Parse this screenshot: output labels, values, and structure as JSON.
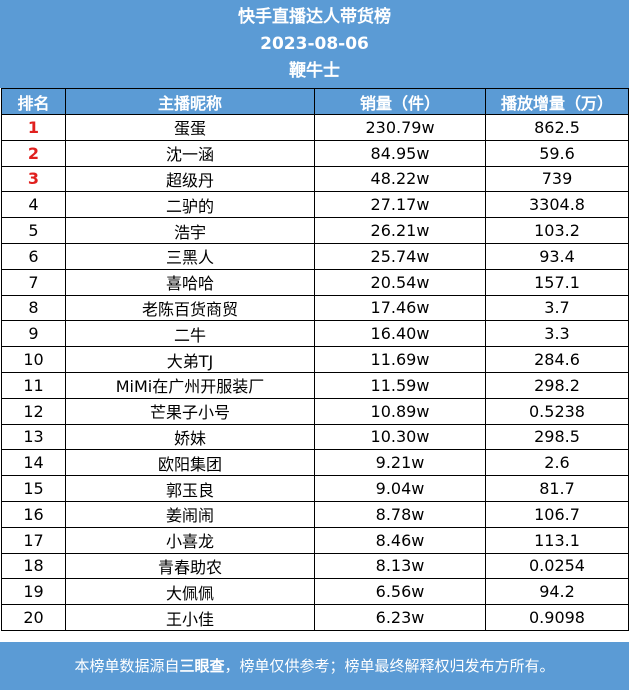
{
  "header": {
    "title": "快手直播达人带货榜",
    "date": "2023-08-06",
    "brand": "鞭牛士"
  },
  "table": {
    "columns": [
      "排名",
      "主播昵称",
      "销量（件）",
      "播放增量（万）"
    ],
    "rows": [
      {
        "rank": "1",
        "name": "蛋蛋",
        "sales": "230.79w",
        "plays": "862.5"
      },
      {
        "rank": "2",
        "name": "沈一涵",
        "sales": "84.95w",
        "plays": "59.6"
      },
      {
        "rank": "3",
        "name": "超级丹",
        "sales": "48.22w",
        "plays": "739"
      },
      {
        "rank": "4",
        "name": "二驴的",
        "sales": "27.17w",
        "plays": "3304.8"
      },
      {
        "rank": "5",
        "name": "浩宇",
        "sales": "26.21w",
        "plays": "103.2"
      },
      {
        "rank": "6",
        "name": "三黑人",
        "sales": "25.74w",
        "plays": "93.4"
      },
      {
        "rank": "7",
        "name": "喜哈哈",
        "sales": "20.54w",
        "plays": "157.1"
      },
      {
        "rank": "8",
        "name": "老陈百货商贸",
        "sales": "17.46w",
        "plays": "3.7"
      },
      {
        "rank": "9",
        "name": "二牛",
        "sales": "16.40w",
        "plays": "3.3"
      },
      {
        "rank": "10",
        "name": "大弟TJ",
        "sales": "11.69w",
        "plays": "284.6"
      },
      {
        "rank": "11",
        "name": "MiMi在广州开服装厂",
        "sales": "11.59w",
        "plays": "298.2"
      },
      {
        "rank": "12",
        "name": "芒果子小号",
        "sales": "10.89w",
        "plays": "0.5238"
      },
      {
        "rank": "13",
        "name": "娇妹",
        "sales": "10.30w",
        "plays": "298.5"
      },
      {
        "rank": "14",
        "name": "欧阳集团",
        "sales": "9.21w",
        "plays": "2.6"
      },
      {
        "rank": "15",
        "name": "郭玉良",
        "sales": "9.04w",
        "plays": "81.7"
      },
      {
        "rank": "16",
        "name": "姜闹闹",
        "sales": "8.78w",
        "plays": "106.7"
      },
      {
        "rank": "17",
        "name": "小喜龙",
        "sales": "8.46w",
        "plays": "113.1"
      },
      {
        "rank": "18",
        "name": "青春助农",
        "sales": "8.13w",
        "plays": "0.0254"
      },
      {
        "rank": "19",
        "name": "大佩佩",
        "sales": "6.56w",
        "plays": "94.2"
      },
      {
        "rank": "20",
        "name": "王小佳",
        "sales": "6.23w",
        "plays": "0.9098"
      }
    ]
  },
  "footer": {
    "prefix": "本榜单数据源自",
    "source": "三眼查",
    "suffix": "，榜单仅供参考；榜单最终解释权归发布方所有。"
  },
  "colors": {
    "header_bg": "#5b9bd5",
    "top_rank": "#e0201e"
  }
}
